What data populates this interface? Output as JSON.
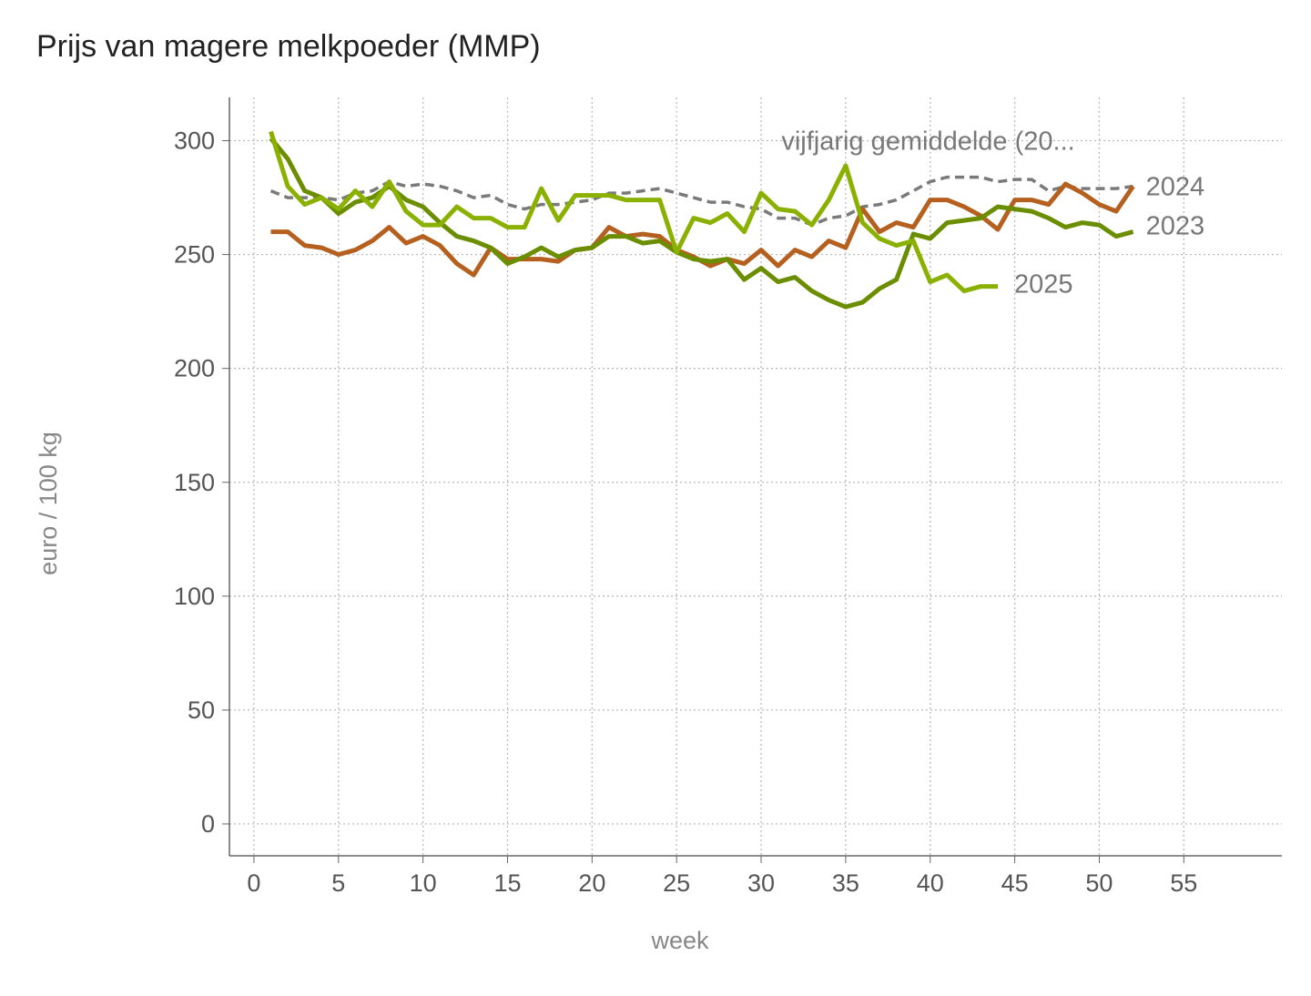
{
  "chart_data": {
    "type": "line",
    "title": "Prijs van magere melkpoeder (MMP)",
    "xlabel": "week",
    "ylabel": "euro / 100 kg",
    "xlim": [
      -1.45,
      60.8
    ],
    "ylim": [
      -14,
      319
    ],
    "xticks": [
      0,
      5,
      10,
      15,
      20,
      25,
      30,
      35,
      40,
      45,
      50,
      55
    ],
    "yticks": [
      0,
      50,
      100,
      150,
      200,
      250,
      300
    ],
    "grid": true,
    "legend": "direct labels at line ends",
    "series": [
      {
        "name": "vijfjarig gemiddelde (20...",
        "color": "#7a7a7a",
        "dash": true,
        "values": [
          278,
          275,
          275,
          275,
          274,
          277,
          278,
          282,
          280,
          281,
          280,
          278,
          275,
          276,
          272,
          270,
          272,
          272,
          273,
          274,
          277,
          277,
          278,
          279,
          277,
          275,
          273,
          273,
          271,
          270,
          266,
          266,
          263,
          266,
          267,
          271,
          272,
          274,
          278,
          282,
          284,
          284,
          284,
          282,
          283,
          283,
          278,
          280,
          279,
          279,
          279,
          280
        ]
      },
      {
        "name": "2024",
        "color": "#b5601e",
        "values": [
          260,
          260,
          254,
          253,
          250,
          252,
          256,
          262,
          255,
          258,
          254,
          246,
          241,
          253,
          248,
          248,
          248,
          247,
          252,
          253,
          262,
          258,
          259,
          258,
          252,
          249,
          245,
          248,
          246,
          252,
          245,
          252,
          249,
          256,
          253,
          270,
          260,
          264,
          262,
          274,
          274,
          271,
          267,
          261,
          274,
          274,
          272,
          281,
          277,
          272,
          269,
          280
        ]
      },
      {
        "name": "2023",
        "color": "#6b8e00",
        "values": [
          301,
          292,
          278,
          275,
          268,
          273,
          275,
          280,
          274,
          271,
          264,
          258,
          256,
          253,
          246,
          249,
          253,
          249,
          252,
          253,
          258,
          258,
          255,
          256,
          251,
          248,
          247,
          248,
          239,
          244,
          238,
          240,
          234,
          230,
          227,
          229,
          235,
          239,
          259,
          257,
          264,
          265,
          266,
          271,
          270,
          269,
          266,
          262,
          264,
          263,
          258,
          260
        ]
      },
      {
        "name": "2025",
        "color": "#8ab000",
        "values": [
          304,
          280,
          272,
          275,
          270,
          278,
          271,
          282,
          269,
          263,
          263,
          271,
          266,
          266,
          262,
          262,
          279,
          265,
          276,
          276,
          276,
          274,
          274,
          274,
          251,
          266,
          264,
          268,
          260,
          277,
          270,
          269,
          263,
          274,
          289,
          264,
          257,
          254,
          256,
          238,
          241,
          234,
          236,
          236
        ]
      }
    ]
  }
}
